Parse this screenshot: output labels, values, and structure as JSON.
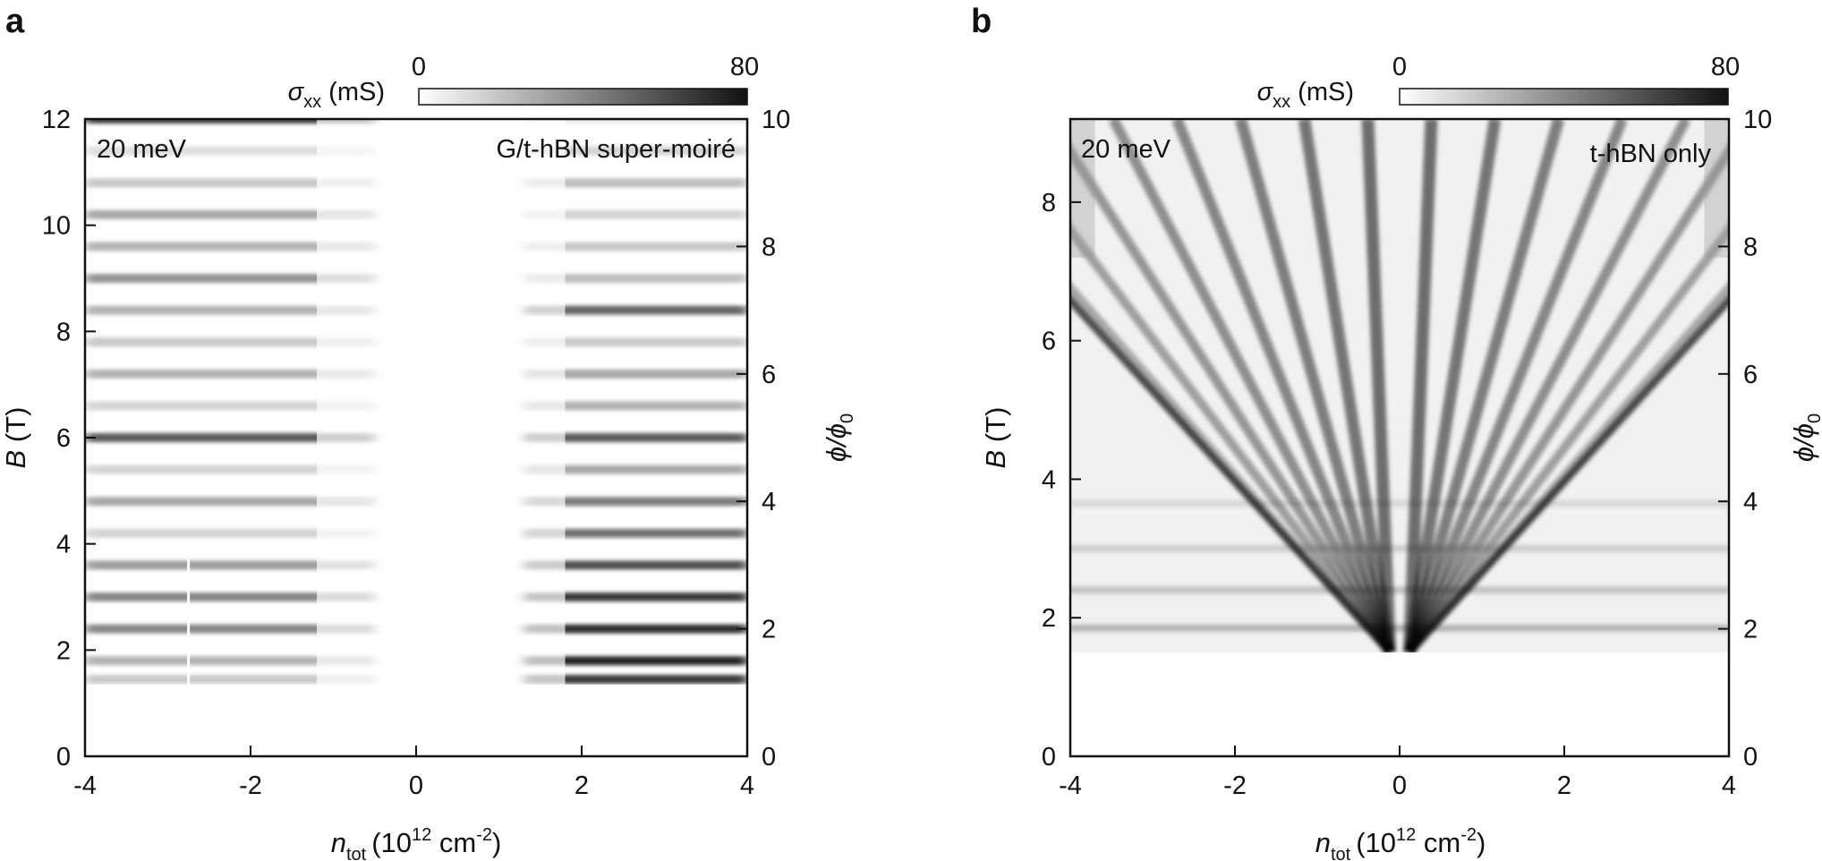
{
  "chart_data": [
    {
      "panel": "a",
      "type": "heatmap",
      "energy_label": "20 meV",
      "corner_label": "G/t-hBN super-moiré",
      "xlabel": {
        "symbol": "n",
        "sub": "tot",
        "unit_pre": "(10",
        "unit_sup": "12",
        "unit_mid": " cm",
        "unit_sup2": "-2",
        "unit_post": ")"
      },
      "ylabel": {
        "symbol": "B",
        "unit": " (T)"
      },
      "y2label": {
        "symbol": "ϕ/ϕ",
        "sub": "0"
      },
      "colorbar": {
        "symbol": "σ",
        "sub": "xx",
        "unit": " (mS)",
        "min_label": "0",
        "max_label": "80",
        "range": [
          0,
          80
        ]
      },
      "xlim": [
        -4,
        4
      ],
      "ylim": [
        0,
        12
      ],
      "y2lim": [
        0,
        10
      ],
      "xticks": [
        "-4",
        "-2",
        "0",
        "2",
        "4"
      ],
      "yticks": [
        "0",
        "2",
        "4",
        "6",
        "8",
        "10",
        "12"
      ],
      "y2ticks": [
        "0",
        "2",
        "4",
        "6",
        "8",
        "10"
      ],
      "data_range_B": [
        1.35,
        12
      ],
      "stripes_B": [
        {
          "B": 12.0,
          "left": 0.9,
          "right": 0.1
        },
        {
          "B": 11.4,
          "left": 0.15,
          "right": 0.2
        },
        {
          "B": 10.8,
          "left": 0.25,
          "right": 0.3
        },
        {
          "B": 10.2,
          "left": 0.4,
          "right": 0.2
        },
        {
          "B": 9.6,
          "left": 0.35,
          "right": 0.25
        },
        {
          "B": 9.0,
          "left": 0.5,
          "right": 0.3
        },
        {
          "B": 8.4,
          "left": 0.35,
          "right": 0.7
        },
        {
          "B": 7.8,
          "left": 0.25,
          "right": 0.25
        },
        {
          "B": 7.2,
          "left": 0.35,
          "right": 0.4
        },
        {
          "B": 6.6,
          "left": 0.2,
          "right": 0.35
        },
        {
          "B": 6.0,
          "left": 0.75,
          "right": 0.75
        },
        {
          "B": 5.4,
          "left": 0.2,
          "right": 0.4
        },
        {
          "B": 4.8,
          "left": 0.4,
          "right": 0.6
        },
        {
          "B": 4.2,
          "left": 0.2,
          "right": 0.65
        },
        {
          "B": 3.6,
          "left": 0.45,
          "right": 0.8
        },
        {
          "B": 3.0,
          "left": 0.55,
          "right": 0.9
        },
        {
          "B": 2.4,
          "left": 0.55,
          "right": 0.95
        },
        {
          "B": 1.8,
          "left": 0.35,
          "right": 1.0
        },
        {
          "B": 1.45,
          "left": 0.25,
          "right": 0.9
        }
      ]
    },
    {
      "panel": "b",
      "type": "heatmap",
      "energy_label": "20 meV",
      "corner_label": "t-hBN only",
      "xlabel": {
        "symbol": "n",
        "sub": "tot",
        "unit_pre": "(10",
        "unit_sup": "12",
        "unit_mid": " cm",
        "unit_sup2": "-2",
        "unit_post": ")"
      },
      "ylabel": {
        "symbol": "B",
        "unit": " (T)"
      },
      "y2label": {
        "symbol": "ϕ/ϕ",
        "sub": "0"
      },
      "colorbar": {
        "symbol": "σ",
        "sub": "xx",
        "unit": " (mS)",
        "min_label": "0",
        "max_label": "80",
        "range": [
          0,
          80
        ]
      },
      "xlim": [
        -4,
        4
      ],
      "ylim": [
        0,
        9.2
      ],
      "y2lim": [
        0,
        10
      ],
      "xticks": [
        "-4",
        "-2",
        "0",
        "2",
        "4"
      ],
      "yticks": [
        "0",
        "2",
        "4",
        "6",
        "8"
      ],
      "y2ticks": [
        "0",
        "2",
        "4",
        "6",
        "8",
        "10"
      ],
      "data_range_B": [
        1.5,
        9.2
      ],
      "landau_fan_n0": [
        0.15,
        0.45,
        0.75,
        1.05,
        1.35,
        1.65,
        1.95,
        2.25,
        2.55,
        2.85,
        3.15,
        3.45,
        3.75
      ],
      "fan_origin_B": 1.5
    }
  ]
}
